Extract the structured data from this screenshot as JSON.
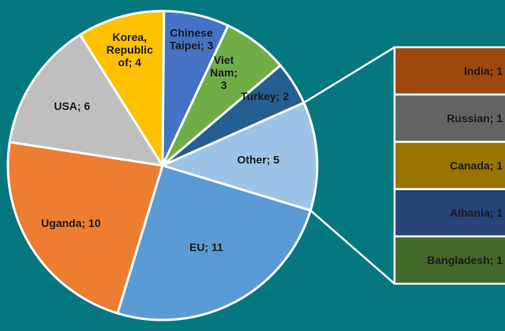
{
  "chart_data": {
    "type": "pie",
    "title": "",
    "slices": [
      {
        "label": "Other",
        "value": 5,
        "color": "#9dc3e6",
        "text": "Other; 5"
      },
      {
        "label": "EU",
        "value": 11,
        "color": "#5b9bd5",
        "text": "EU; 11"
      },
      {
        "label": "Uganda",
        "value": 10,
        "color": "#ed7d31",
        "text": "Uganda; 10"
      },
      {
        "label": "USA",
        "value": 6,
        "color": "#bfbfbf",
        "text": "USA; 6"
      },
      {
        "label": "Korea, Republic of",
        "value": 4,
        "color": "#ffc000",
        "text": "Korea, Republic of; 4",
        "lines": [
          "Korea,",
          "Republic",
          "of; 4"
        ]
      },
      {
        "label": "Chinese Taipei",
        "value": 3,
        "color": "#4472c4",
        "text": "Chinese Taipei; 3",
        "lines": [
          "Chinese",
          "Taipei; 3"
        ]
      },
      {
        "label": "Viet Nam",
        "value": 3,
        "color": "#70ad47",
        "text": "Viet Nam; 3",
        "lines": [
          "Viet",
          "Nam;",
          "3"
        ]
      },
      {
        "label": "Turkey",
        "value": 2,
        "color": "#255e91",
        "text": "Turkey; 2"
      }
    ],
    "breakout": {
      "of": "Other",
      "type": "bar-of-pie",
      "items": [
        {
          "label": "India",
          "value": 1,
          "color": "#9e480e",
          "text": "India; 1"
        },
        {
          "label": "Russian",
          "value": 1,
          "color": "#636363",
          "text": "Russian; 1"
        },
        {
          "label": "Canada",
          "value": 1,
          "color": "#997300",
          "text": "Canada; 1"
        },
        {
          "label": "Albania",
          "value": 1,
          "color": "#264478",
          "text": "Albania; 1"
        },
        {
          "label": "Bangladesh",
          "value": 1,
          "color": "#43682b",
          "text": "Bangladesh; 1"
        }
      ]
    },
    "legend": "none",
    "grid": false
  }
}
